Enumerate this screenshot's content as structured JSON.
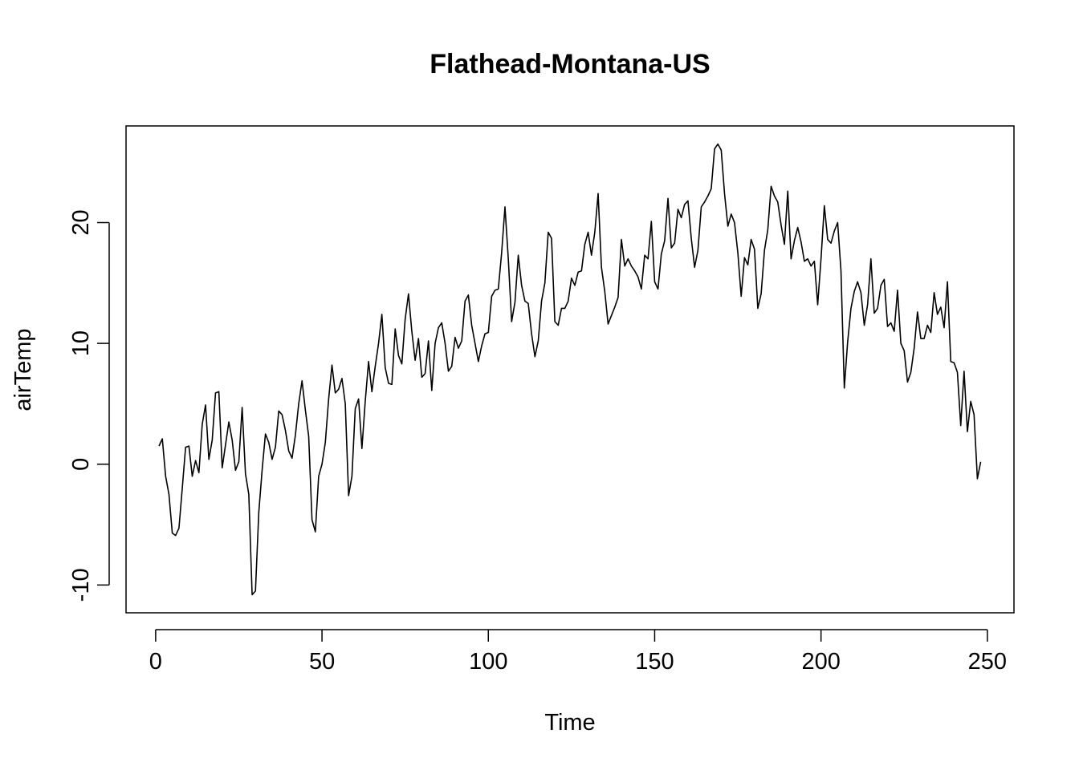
{
  "chart_data": {
    "type": "line",
    "title": "Flathead-Montana-US",
    "xlabel": "Time",
    "ylabel": "airTemp",
    "xlim": [
      -8.9,
      258
    ],
    "ylim": [
      -12.3,
      28
    ],
    "x_ticks": [
      0,
      50,
      100,
      150,
      200,
      250
    ],
    "x_tick_labels": [
      "0",
      "50",
      "100",
      "150",
      "200",
      "250"
    ],
    "y_ticks": [
      -10,
      0,
      10,
      20
    ],
    "y_tick_labels": [
      "-10",
      "0",
      "10",
      "20"
    ],
    "grid": false,
    "legend": "none",
    "x": [
      1,
      2,
      3,
      4,
      5,
      6,
      7,
      8,
      9,
      10,
      11,
      12,
      13,
      14,
      15,
      16,
      17,
      18,
      19,
      20,
      21,
      22,
      23,
      24,
      25,
      26,
      27,
      28,
      29,
      30,
      31,
      32,
      33,
      34,
      35,
      36,
      37,
      38,
      39,
      40,
      41,
      42,
      43,
      44,
      45,
      46,
      47,
      48,
      49,
      50,
      51,
      52,
      53,
      54,
      55,
      56,
      57,
      58,
      59,
      60,
      61,
      62,
      63,
      64,
      65,
      66,
      67,
      68,
      69,
      70,
      71,
      72,
      73,
      74,
      75,
      76,
      77,
      78,
      79,
      80,
      81,
      82,
      83,
      84,
      85,
      86,
      87,
      88,
      89,
      90,
      91,
      92,
      93,
      94,
      95,
      96,
      97,
      98,
      99,
      100,
      101,
      102,
      103,
      104,
      105,
      106,
      107,
      108,
      109,
      110,
      111,
      112,
      113,
      114,
      115,
      116,
      117,
      118,
      119,
      120,
      121,
      122,
      123,
      124,
      125,
      126,
      127,
      128,
      129,
      130,
      131,
      132,
      133,
      134,
      135,
      136,
      137,
      138,
      139,
      140,
      141,
      142,
      143,
      144,
      145,
      146,
      147,
      148,
      149,
      150,
      151,
      152,
      153,
      154,
      155,
      156,
      157,
      158,
      159,
      160,
      161,
      162,
      163,
      164,
      165,
      166,
      167,
      168,
      169,
      170,
      171,
      172,
      173,
      174,
      175,
      176,
      177,
      178,
      179,
      180,
      181,
      182,
      183,
      184,
      185,
      186,
      187,
      188,
      189,
      190,
      191,
      192,
      193,
      194,
      195,
      196,
      197,
      198,
      199,
      200,
      201,
      202,
      203,
      204,
      205,
      206,
      207,
      208,
      209,
      210,
      211,
      212,
      213,
      214,
      215,
      216,
      217,
      218,
      219,
      220,
      221,
      222,
      223,
      224,
      225,
      226,
      227,
      228,
      229,
      230,
      231,
      232,
      233,
      234,
      235,
      236,
      237,
      238,
      239,
      240,
      241,
      242,
      243,
      244,
      245,
      246,
      247,
      248
    ],
    "values": [
      1.5,
      2.1,
      -1.0,
      -2.5,
      -5.7,
      -5.9,
      -5.3,
      -2.0,
      1.4,
      1.5,
      -1.0,
      0.3,
      -0.7,
      3.3,
      4.9,
      0.4,
      2.0,
      5.9,
      6.0,
      -0.3,
      1.6,
      3.5,
      2.0,
      -0.5,
      0.2,
      4.7,
      -0.8,
      -2.5,
      -10.8,
      -10.5,
      -4.0,
      -0.5,
      2.5,
      1.8,
      0.4,
      1.4,
      4.4,
      4.1,
      2.8,
      1.1,
      0.5,
      2.4,
      5.0,
      6.9,
      4.5,
      2.3,
      -4.6,
      -5.6,
      -1.0,
      0.0,
      1.8,
      5.4,
      8.2,
      5.9,
      6.2,
      7.1,
      5.0,
      -2.6,
      -1.0,
      4.6,
      5.4,
      1.3,
      5.2,
      8.5,
      6.0,
      8.1,
      10.0,
      12.4,
      8.0,
      6.7,
      6.6,
      11.2,
      9.0,
      8.3,
      12.0,
      14.1,
      11.0,
      8.6,
      10.4,
      7.2,
      7.5,
      10.2,
      6.1,
      10.0,
      11.3,
      11.7,
      10.0,
      7.7,
      8.1,
      10.5,
      9.6,
      10.2,
      13.5,
      14.0,
      11.5,
      10.0,
      8.5,
      9.8,
      10.8,
      10.9,
      13.9,
      14.4,
      14.5,
      17.5,
      21.3,
      17.0,
      11.8,
      13.4,
      17.3,
      14.8,
      13.5,
      13.3,
      10.8,
      8.9,
      10.2,
      13.5,
      15.0,
      19.2,
      18.7,
      11.8,
      11.5,
      12.9,
      12.9,
      13.5,
      15.4,
      14.8,
      15.9,
      16.0,
      18.2,
      19.2,
      17.3,
      19.2,
      22.4,
      16.3,
      14.3,
      11.6,
      12.3,
      13.0,
      13.8,
      18.6,
      16.4,
      17.0,
      16.4,
      16.0,
      15.5,
      14.5,
      17.3,
      17.0,
      20.1,
      15.1,
      14.5,
      17.4,
      18.5,
      22.0,
      17.9,
      18.3,
      21.1,
      20.4,
      21.5,
      21.8,
      18.7,
      16.3,
      17.7,
      21.3,
      21.7,
      22.2,
      22.8,
      26.1,
      26.5,
      26.0,
      22.4,
      19.7,
      20.7,
      20.0,
      17.5,
      13.9,
      17.1,
      16.5,
      18.6,
      17.8,
      12.9,
      14.1,
      17.7,
      19.4,
      23.0,
      22.2,
      21.7,
      19.8,
      18.2,
      22.6,
      17.0,
      18.5,
      19.6,
      18.4,
      16.8,
      17.0,
      16.4,
      16.8,
      13.2,
      17.0,
      21.4,
      18.6,
      18.3,
      19.3,
      20.0,
      16.0,
      6.3,
      10.1,
      12.9,
      14.3,
      15.1,
      14.2,
      11.5,
      13.2,
      17.0,
      12.5,
      12.9,
      14.8,
      15.3,
      11.4,
      11.7,
      11.0,
      14.4,
      10.0,
      9.4,
      6.8,
      7.6,
      9.6,
      12.6,
      10.4,
      10.4,
      11.5,
      10.9,
      14.2,
      12.4,
      13.0,
      11.3,
      15.1,
      8.5,
      8.4,
      7.6,
      3.2,
      7.7,
      2.7,
      5.2,
      4.1,
      -1.2,
      0.2
    ]
  }
}
